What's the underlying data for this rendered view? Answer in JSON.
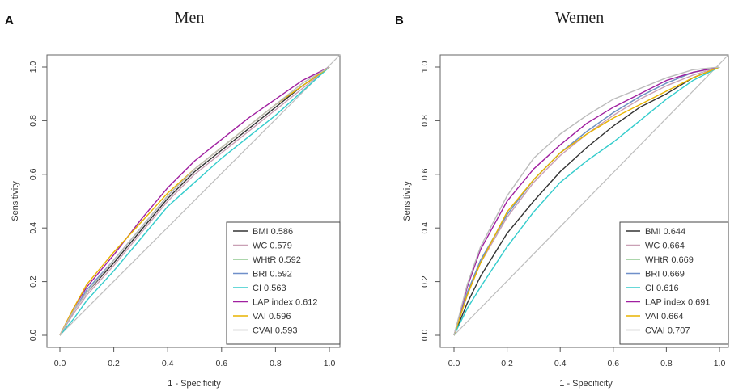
{
  "chart_data": [
    {
      "type": "line",
      "panel_label": "A",
      "title": "Men",
      "xlabel": "1 - Specificity",
      "ylabel": "Sensitivity",
      "xlim": [
        0,
        1
      ],
      "ylim": [
        0,
        1
      ],
      "xticks": [
        "0.0",
        "0.2",
        "0.4",
        "0.6",
        "0.8",
        "1.0"
      ],
      "yticks": [
        "0.0",
        "0.2",
        "0.4",
        "0.6",
        "0.8",
        "1.0"
      ],
      "reference_line": true,
      "legend_position": "bottom-right",
      "series": [
        {
          "name": "BMI 0.586",
          "color": "#333333",
          "x": [
            0,
            0.05,
            0.1,
            0.2,
            0.3,
            0.4,
            0.5,
            0.6,
            0.7,
            0.8,
            0.9,
            1.0
          ],
          "y": [
            0,
            0.09,
            0.16,
            0.27,
            0.39,
            0.51,
            0.61,
            0.69,
            0.77,
            0.85,
            0.93,
            1.0
          ]
        },
        {
          "name": "WC 0.579",
          "color": "#c9a0b5",
          "x": [
            0,
            0.05,
            0.1,
            0.2,
            0.3,
            0.4,
            0.5,
            0.6,
            0.7,
            0.8,
            0.9,
            1.0
          ],
          "y": [
            0,
            0.08,
            0.15,
            0.26,
            0.38,
            0.5,
            0.6,
            0.68,
            0.76,
            0.84,
            0.92,
            1.0
          ]
        },
        {
          "name": "WHtR 0.592",
          "color": "#8fc98f",
          "x": [
            0,
            0.05,
            0.1,
            0.2,
            0.3,
            0.4,
            0.5,
            0.6,
            0.7,
            0.8,
            0.9,
            1.0
          ],
          "y": [
            0,
            0.09,
            0.16,
            0.28,
            0.4,
            0.52,
            0.62,
            0.7,
            0.78,
            0.86,
            0.93,
            1.0
          ]
        },
        {
          "name": "BRI 0.592",
          "color": "#6f8fc9",
          "x": [
            0,
            0.05,
            0.1,
            0.2,
            0.3,
            0.4,
            0.5,
            0.6,
            0.7,
            0.8,
            0.9,
            1.0
          ],
          "y": [
            0,
            0.09,
            0.17,
            0.28,
            0.4,
            0.52,
            0.62,
            0.7,
            0.78,
            0.86,
            0.93,
            1.0
          ]
        },
        {
          "name": "CI 0.563",
          "color": "#33cccc",
          "x": [
            0,
            0.05,
            0.1,
            0.2,
            0.3,
            0.4,
            0.5,
            0.6,
            0.7,
            0.8,
            0.9,
            1.0
          ],
          "y": [
            0,
            0.06,
            0.13,
            0.24,
            0.36,
            0.48,
            0.57,
            0.66,
            0.74,
            0.82,
            0.91,
            1.0
          ]
        },
        {
          "name": "LAP index 0.612",
          "color": "#a020a0",
          "x": [
            0,
            0.05,
            0.1,
            0.2,
            0.3,
            0.4,
            0.5,
            0.6,
            0.7,
            0.8,
            0.9,
            1.0
          ],
          "y": [
            0,
            0.1,
            0.18,
            0.3,
            0.43,
            0.55,
            0.65,
            0.73,
            0.81,
            0.88,
            0.95,
            1.0
          ]
        },
        {
          "name": "VAI 0.596",
          "color": "#e8b400",
          "x": [
            0,
            0.05,
            0.1,
            0.2,
            0.3,
            0.4,
            0.5,
            0.6,
            0.7,
            0.8,
            0.9,
            1.0
          ],
          "y": [
            0,
            0.1,
            0.19,
            0.31,
            0.42,
            0.53,
            0.62,
            0.7,
            0.78,
            0.86,
            0.93,
            1.0
          ]
        },
        {
          "name": "CVAI 0.593",
          "color": "#bbbbbb",
          "x": [
            0,
            0.05,
            0.1,
            0.2,
            0.3,
            0.4,
            0.5,
            0.6,
            0.7,
            0.8,
            0.9,
            1.0
          ],
          "y": [
            0,
            0.09,
            0.16,
            0.28,
            0.4,
            0.52,
            0.62,
            0.7,
            0.78,
            0.86,
            0.94,
            1.0
          ]
        }
      ]
    },
    {
      "type": "line",
      "panel_label": "B",
      "title": "Wemen",
      "xlabel": "1 - Specificity",
      "ylabel": "Sensitivity",
      "xlim": [
        0,
        1
      ],
      "ylim": [
        0,
        1
      ],
      "xticks": [
        "0.0",
        "0.2",
        "0.4",
        "0.6",
        "0.8",
        "1.0"
      ],
      "yticks": [
        "0.0",
        "0.2",
        "0.4",
        "0.6",
        "0.8",
        "1.0"
      ],
      "reference_line": true,
      "legend_position": "bottom-right",
      "series": [
        {
          "name": "BMI 0.644",
          "color": "#333333",
          "x": [
            0,
            0.05,
            0.1,
            0.2,
            0.3,
            0.4,
            0.5,
            0.6,
            0.7,
            0.8,
            0.9,
            1.0
          ],
          "y": [
            0,
            0.12,
            0.22,
            0.38,
            0.5,
            0.61,
            0.7,
            0.78,
            0.85,
            0.9,
            0.96,
            1.0
          ]
        },
        {
          "name": "WC 0.664",
          "color": "#c9a0b5",
          "x": [
            0,
            0.05,
            0.1,
            0.2,
            0.3,
            0.4,
            0.5,
            0.6,
            0.7,
            0.8,
            0.9,
            1.0
          ],
          "y": [
            0,
            0.15,
            0.27,
            0.44,
            0.57,
            0.67,
            0.75,
            0.82,
            0.88,
            0.93,
            0.97,
            1.0
          ]
        },
        {
          "name": "WHtR 0.669",
          "color": "#8fc98f",
          "x": [
            0,
            0.05,
            0.1,
            0.2,
            0.3,
            0.4,
            0.5,
            0.6,
            0.7,
            0.8,
            0.9,
            1.0
          ],
          "y": [
            0,
            0.16,
            0.28,
            0.45,
            0.58,
            0.68,
            0.76,
            0.83,
            0.89,
            0.94,
            0.98,
            1.0
          ]
        },
        {
          "name": "BRI 0.669",
          "color": "#6f8fc9",
          "x": [
            0,
            0.05,
            0.1,
            0.2,
            0.3,
            0.4,
            0.5,
            0.6,
            0.7,
            0.8,
            0.9,
            1.0
          ],
          "y": [
            0,
            0.16,
            0.28,
            0.45,
            0.58,
            0.68,
            0.76,
            0.83,
            0.89,
            0.94,
            0.98,
            1.0
          ]
        },
        {
          "name": "CI 0.616",
          "color": "#33cccc",
          "x": [
            0,
            0.05,
            0.1,
            0.2,
            0.3,
            0.4,
            0.5,
            0.6,
            0.7,
            0.8,
            0.9,
            1.0
          ],
          "y": [
            0,
            0.1,
            0.18,
            0.33,
            0.46,
            0.57,
            0.65,
            0.72,
            0.8,
            0.88,
            0.95,
            1.0
          ]
        },
        {
          "name": "LAP index 0.691",
          "color": "#a020a0",
          "x": [
            0,
            0.05,
            0.1,
            0.2,
            0.3,
            0.4,
            0.5,
            0.6,
            0.7,
            0.8,
            0.9,
            1.0
          ],
          "y": [
            0,
            0.18,
            0.32,
            0.5,
            0.62,
            0.71,
            0.79,
            0.85,
            0.9,
            0.95,
            0.98,
            1.0
          ]
        },
        {
          "name": "VAI 0.664",
          "color": "#e8b400",
          "x": [
            0,
            0.05,
            0.1,
            0.2,
            0.3,
            0.4,
            0.5,
            0.6,
            0.7,
            0.8,
            0.9,
            1.0
          ],
          "y": [
            0,
            0.15,
            0.27,
            0.46,
            0.58,
            0.68,
            0.75,
            0.81,
            0.86,
            0.91,
            0.96,
            1.0
          ]
        },
        {
          "name": "CVAI 0.707",
          "color": "#bbbbbb",
          "x": [
            0,
            0.05,
            0.1,
            0.2,
            0.3,
            0.4,
            0.5,
            0.6,
            0.7,
            0.8,
            0.9,
            1.0
          ],
          "y": [
            0,
            0.19,
            0.33,
            0.52,
            0.66,
            0.75,
            0.82,
            0.88,
            0.92,
            0.96,
            0.99,
            1.0
          ]
        }
      ]
    }
  ]
}
